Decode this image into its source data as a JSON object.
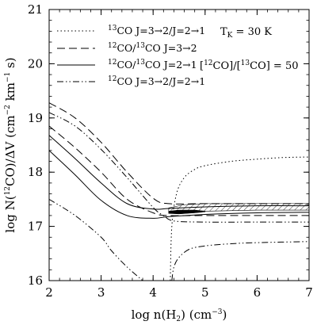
{
  "chart_data": {
    "type": "line",
    "xlabel": "log n(H2) (cm^-3)",
    "ylabel": "log N(12CO)/ΔV (cm^-2 km^-1 s)",
    "xlim": [
      2,
      7
    ],
    "ylim": [
      16,
      21
    ],
    "xticks": [
      "2",
      "3",
      "4",
      "5",
      "6",
      "7"
    ],
    "yticks": [
      "16",
      "17",
      "18",
      "19",
      "20",
      "21"
    ],
    "grid": false,
    "legend_position": "top-left",
    "annotations": [
      "T_K = 30 K",
      "[12CO]/[13CO] = 50"
    ],
    "series": [
      {
        "name": "13CO J=3→2/J=2→1",
        "style": "dotted",
        "branches": [
          {
            "x": [
              4.33,
              4.36,
              4.45,
              4.6,
              4.8,
              5.0,
              5.5,
              6.0,
              6.5,
              7.0
            ],
            "y": [
              16.0,
              17.0,
              17.6,
              17.9,
              18.05,
              18.12,
              18.2,
              18.24,
              18.27,
              18.28
            ]
          }
        ]
      },
      {
        "name": "12CO/13CO J=3→2",
        "style": "dashed",
        "branches": [
          {
            "x": [
              2.0,
              2.5,
              3.0,
              3.5,
              4.0,
              4.3,
              5.0,
              6.0,
              7.0
            ],
            "y": [
              19.28,
              19.0,
              18.55,
              18.0,
              17.52,
              17.42,
              17.42,
              17.42,
              17.42
            ]
          },
          {
            "x": [
              2.0,
              2.5,
              3.0,
              3.5,
              4.0,
              4.3,
              5.0,
              6.0,
              7.0
            ],
            "y": [
              18.85,
              18.45,
              18.0,
              17.5,
              17.25,
              17.2,
              17.2,
              17.2,
              17.2
            ]
          }
        ]
      },
      {
        "name": "12CO/13CO J=2→1",
        "style": "solid",
        "branches": [
          {
            "x": [
              2.0,
              2.5,
              3.0,
              3.5,
              4.0,
              4.3,
              5.0,
              6.0,
              7.0
            ],
            "y": [
              18.68,
              18.25,
              17.8,
              17.42,
              17.32,
              17.33,
              17.36,
              17.38,
              17.38
            ]
          },
          {
            "x": [
              2.0,
              2.5,
              3.0,
              3.5,
              4.0,
              4.3,
              5.0,
              6.0,
              7.0
            ],
            "y": [
              18.4,
              17.95,
              17.48,
              17.2,
              17.15,
              17.18,
              17.22,
              17.25,
              17.26
            ]
          }
        ]
      },
      {
        "name": "12CO J=3→2/J=2→1",
        "style": "dash-dot",
        "branches": [
          {
            "x": [
              2.0,
              2.5,
              3.0,
              3.5,
              4.0,
              4.2,
              4.4,
              5.0,
              6.0,
              7.0
            ],
            "y": [
              19.1,
              18.85,
              18.42,
              17.9,
              17.35,
              17.2,
              17.1,
              17.08,
              17.08,
              17.08
            ]
          },
          {
            "x": [
              2.0,
              2.5,
              3.0,
              3.2,
              3.5,
              3.8
            ],
            "y": [
              17.5,
              17.2,
              16.8,
              16.55,
              16.25,
              16.0
            ]
          },
          {
            "x": [
              4.36,
              4.4,
              4.5,
              4.7,
              5.0,
              5.5,
              6.0,
              7.0
            ],
            "y": [
              16.0,
              16.25,
              16.43,
              16.58,
              16.64,
              16.68,
              16.7,
              16.72
            ]
          }
        ]
      }
    ],
    "hatched_region": {
      "x": [
        4.3,
        4.6,
        5.0,
        6.0,
        7.0
      ],
      "y_low": [
        17.24,
        17.27,
        17.28,
        17.3,
        17.3
      ],
      "y_high": [
        17.34,
        17.4,
        17.42,
        17.42,
        17.42
      ]
    },
    "filled_region": {
      "x": [
        4.3,
        4.5,
        4.8,
        5.0
      ],
      "y_low": [
        17.24,
        17.23,
        17.25,
        17.27
      ],
      "y_high": [
        17.28,
        17.3,
        17.3,
        17.28
      ]
    }
  }
}
